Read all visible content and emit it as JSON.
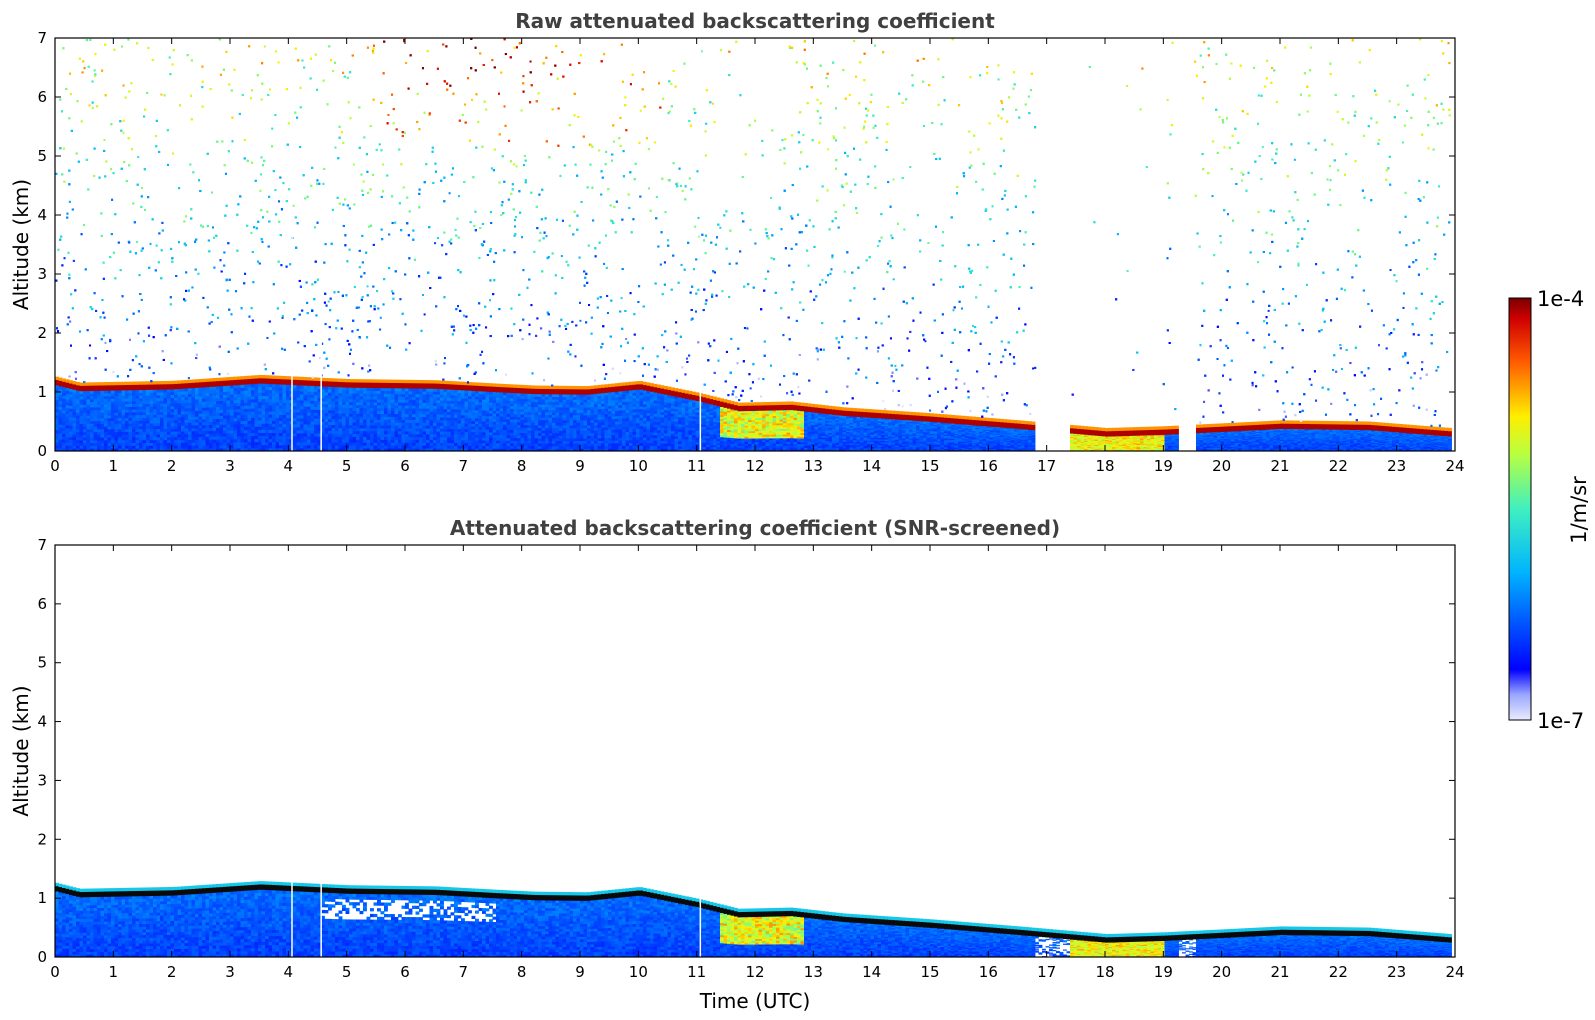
{
  "chart_data": [
    {
      "type": "heatmap",
      "title": "Raw attenuated backscattering coefficient",
      "xlabel": "",
      "ylabel": "Altitude (km)",
      "xlim": [
        0,
        24
      ],
      "ylim": [
        0,
        7
      ],
      "xticks": [
        "0",
        "1",
        "2",
        "3",
        "4",
        "5",
        "6",
        "7",
        "8",
        "9",
        "10",
        "11",
        "12",
        "13",
        "14",
        "15",
        "16",
        "17",
        "18",
        "19",
        "20",
        "21",
        "22",
        "23",
        "24"
      ],
      "yticks": [
        "0",
        "1",
        "2",
        "3",
        "4",
        "5",
        "6",
        "7"
      ],
      "screened": false,
      "layer_top_km": [
        {
          "t": 0,
          "z": 1.12
        },
        {
          "t": 0.4,
          "z": 1.02
        },
        {
          "t": 2,
          "z": 1.05
        },
        {
          "t": 3.5,
          "z": 1.15
        },
        {
          "t": 5,
          "z": 1.08
        },
        {
          "t": 6.5,
          "z": 1.06
        },
        {
          "t": 7.6,
          "z": 1.0
        },
        {
          "t": 8.2,
          "z": 0.97
        },
        {
          "t": 9.1,
          "z": 0.96
        },
        {
          "t": 10,
          "z": 1.05
        },
        {
          "t": 11,
          "z": 0.85
        },
        {
          "t": 11.7,
          "z": 0.68
        },
        {
          "t": 12.6,
          "z": 0.7
        },
        {
          "t": 13.5,
          "z": 0.6
        },
        {
          "t": 15,
          "z": 0.5
        },
        {
          "t": 16.5,
          "z": 0.38
        },
        {
          "t": 18,
          "z": 0.25
        },
        {
          "t": 19,
          "z": 0.28
        },
        {
          "t": 21,
          "z": 0.38
        },
        {
          "t": 22.5,
          "z": 0.36
        },
        {
          "t": 23.9,
          "z": 0.25
        }
      ],
      "gaps_utc": [
        [
          16.8,
          17.4
        ],
        [
          19.2,
          19.5
        ]
      ]
    },
    {
      "type": "heatmap",
      "title": "Attenuated backscattering coefficient (SNR-screened)",
      "xlabel": "Time (UTC)",
      "ylabel": "Altitude (km)",
      "xlim": [
        0,
        24
      ],
      "ylim": [
        0,
        7
      ],
      "xticks": [
        "0",
        "1",
        "2",
        "3",
        "4",
        "5",
        "6",
        "7",
        "8",
        "9",
        "10",
        "11",
        "12",
        "13",
        "14",
        "15",
        "16",
        "17",
        "18",
        "19",
        "20",
        "21",
        "22",
        "23",
        "24"
      ],
      "yticks": [
        "0",
        "1",
        "2",
        "3",
        "4",
        "5",
        "6",
        "7"
      ],
      "screened": true
    }
  ],
  "colorbar": {
    "label": "1/m/sr",
    "max_label": "1e-4",
    "min_label": "1e-7",
    "scale": "log",
    "colormap": "jet",
    "colors": [
      "#e9ecfb",
      "#0000ff",
      "#00c8ff",
      "#88ff70",
      "#ffee00",
      "#ff6a00",
      "#880000"
    ]
  }
}
